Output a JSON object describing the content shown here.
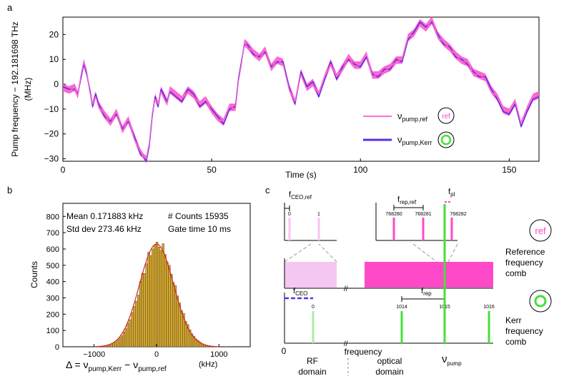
{
  "panel_labels": {
    "a": "a",
    "b": "b",
    "c": "c"
  },
  "colors": {
    "ref_trace": "#ff6fcf",
    "ref_fill": "#ff49c8",
    "kerr_trace": "#5a2ee6",
    "hist_bar": "#d4a62a",
    "fit_line": "#e02020",
    "ref_comb": "#f0f",
    "ref_comb_light": "#f6c6f2",
    "kerr_line": "#44e03a"
  },
  "chart_data": [
    {
      "type": "line",
      "title": "",
      "xlabel": "Time (s)",
      "ylabel_line1": "Pump frequency − 192.181698 THz",
      "ylabel_line2": "(MHz)",
      "xlim": [
        0,
        160
      ],
      "ylim": [
        -31,
        27
      ],
      "xticks": [
        "0",
        "50",
        "100",
        "150"
      ],
      "yticks": [
        "20",
        "10",
        "0",
        "−10",
        "−20",
        "−30"
      ],
      "legend": {
        "ref_label": "ν",
        "ref_sub": "pump,ref",
        "kerr_label": "ν",
        "kerr_sub": "pump,Kerr",
        "ref_badge": "ref",
        "placement": "bottom-right"
      },
      "series": [
        {
          "name": "ν pump,ref",
          "x": [
            0,
            2,
            4,
            5,
            6,
            7,
            8,
            9,
            10,
            11,
            12,
            14,
            16,
            18,
            20,
            22,
            24,
            26,
            27,
            28,
            29,
            30,
            31,
            32,
            33,
            35,
            36,
            38,
            40,
            42,
            44,
            46,
            48,
            50,
            52,
            54,
            56,
            58,
            59,
            60,
            61,
            62,
            64,
            66,
            68,
            70,
            72,
            74,
            76,
            78,
            80,
            82,
            84,
            86,
            88,
            90,
            92,
            94,
            96,
            98,
            100,
            102,
            104,
            106,
            108,
            110,
            112,
            114,
            116,
            118,
            120,
            122,
            124,
            126,
            128,
            130,
            132,
            134,
            136,
            138,
            140,
            142,
            144,
            146,
            148,
            150,
            152,
            154,
            156,
            158,
            160
          ],
          "values": [
            -2,
            -3,
            -1,
            -5,
            3,
            9,
            5,
            -3,
            -8,
            -5,
            -9,
            -12,
            -16,
            -11,
            -19,
            -14,
            -22,
            -27,
            -29,
            -30,
            -24,
            -12,
            -6,
            -8,
            -3,
            -8,
            -2,
            -4,
            -6,
            -3,
            -5,
            -8,
            -6,
            -11,
            -14,
            -15,
            -9,
            -10,
            1,
            8,
            17,
            15,
            13,
            10,
            14,
            6,
            10,
            8,
            -2,
            -7,
            4,
            -2,
            0,
            -4,
            3,
            8,
            3,
            6,
            11,
            7,
            8,
            12,
            3,
            4,
            5,
            7,
            9,
            10,
            19,
            20,
            24,
            22,
            26,
            19,
            17,
            14,
            12,
            9,
            9,
            4,
            4,
            2,
            -3,
            -5,
            -10,
            -11,
            -7,
            -16,
            -10,
            -5,
            -4
          ]
        },
        {
          "name": "ν pump,Kerr",
          "x": [
            0,
            2,
            4,
            5,
            6,
            7,
            8,
            9,
            10,
            11,
            12,
            14,
            16,
            18,
            20,
            22,
            24,
            26,
            27,
            28,
            29,
            30,
            31,
            32,
            33,
            35,
            36,
            38,
            40,
            42,
            44,
            46,
            48,
            50,
            52,
            54,
            56,
            58,
            59,
            60,
            61,
            62,
            64,
            66,
            68,
            70,
            72,
            74,
            76,
            78,
            80,
            82,
            84,
            86,
            88,
            90,
            92,
            94,
            96,
            98,
            100,
            102,
            104,
            106,
            108,
            110,
            112,
            114,
            116,
            118,
            120,
            122,
            124,
            126,
            128,
            130,
            132,
            134,
            136,
            138,
            140,
            142,
            144,
            146,
            148,
            150,
            152,
            154,
            156,
            158,
            160
          ],
          "values": [
            -1,
            -2,
            -2,
            -4,
            2,
            8,
            4,
            -2,
            -9,
            -4,
            -8,
            -13,
            -15,
            -12,
            -18,
            -15,
            -21,
            -28,
            -29,
            -31,
            -25,
            -13,
            -5,
            -9,
            -2,
            -7,
            -3,
            -5,
            -7,
            -2,
            -4,
            -9,
            -7,
            -10,
            -13,
            -16,
            -10,
            -9,
            2,
            9,
            16,
            16,
            12,
            11,
            13,
            7,
            9,
            9,
            -1,
            -8,
            5,
            -1,
            1,
            -5,
            2,
            9,
            2,
            7,
            10,
            8,
            7,
            11,
            4,
            3,
            6,
            6,
            10,
            9,
            18,
            21,
            25,
            23,
            25,
            20,
            16,
            15,
            11,
            10,
            8,
            5,
            3,
            3,
            -2,
            -6,
            -11,
            -12,
            -8,
            -17,
            -11,
            -6,
            -5
          ]
        }
      ]
    },
    {
      "type": "bar",
      "title": "",
      "xlabel": "Δ = ν",
      "xlabel_sub1": "pump,Kerr",
      "xlabel_mid": " − ν",
      "xlabel_sub2": "pump,ref",
      "xlabel_unit": "(kHz)",
      "ylabel": "Counts",
      "xlim": [
        -1500,
        1500
      ],
      "ylim": [
        0,
        880
      ],
      "xticks": [
        "−1000",
        "0",
        "1000"
      ],
      "yticks": [
        "0",
        "100",
        "200",
        "300",
        "400",
        "500",
        "600",
        "700",
        "800"
      ],
      "stats": {
        "mean": "Mean 0.171883 kHz",
        "std": "Std dev 273.46 kHz",
        "counts": "# Counts 15935",
        "gate": "Gate time 10 ms"
      },
      "fit": {
        "type": "gaussian",
        "mean_khz": 0.171883,
        "std_khz": 273.46,
        "peak_counts": 630
      },
      "bin_width_khz": 33
    }
  ],
  "diagram_c": {
    "ref_comb_text": [
      "Reference",
      "frequency",
      "comb"
    ],
    "kerr_comb_text": [
      "Kerr",
      "frequency",
      "comb"
    ],
    "ref_badge": "ref",
    "f_ceo_ref": "f",
    "f_ceo_ref_sub": "CEO,ref",
    "f_rep_ref": "f",
    "f_rep_ref_sub": "rep,ref",
    "f_pl": "f",
    "f_pl_sub": "pl",
    "f_ceo": "f",
    "f_ceo_sub": "CEO",
    "f_rep": "f",
    "f_rep_sub": "rep",
    "ref_lines_low": [
      "0",
      "1"
    ],
    "ref_lines_high": [
      "768280",
      "768281",
      "768282"
    ],
    "kerr_lines": [
      "0",
      "1014",
      "1015",
      "1016"
    ],
    "axis_zero": "0",
    "frequency_label": "frequency",
    "rf_domain": [
      "RF",
      "domain"
    ],
    "optical_domain": [
      "optical",
      "domain"
    ],
    "nu_pump": "ν",
    "nu_pump_sub": "pump"
  }
}
